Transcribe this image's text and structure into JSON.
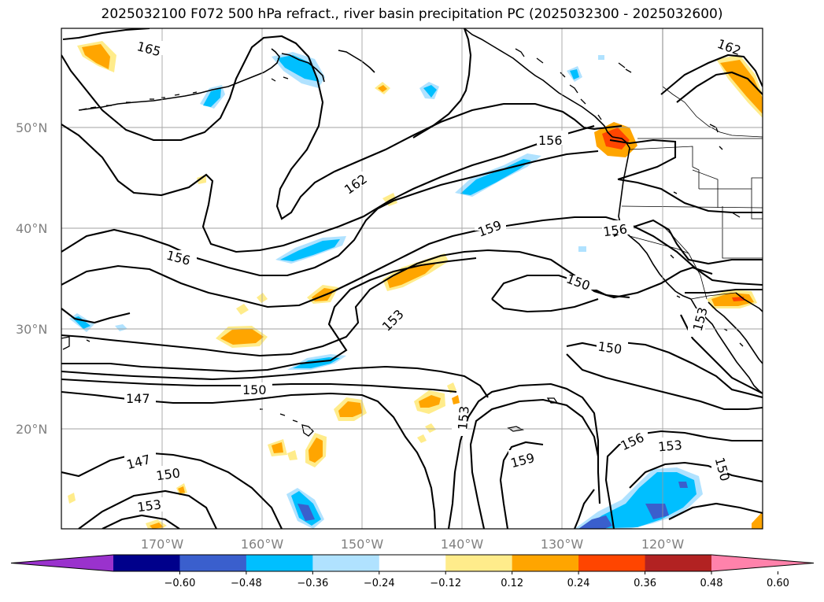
{
  "title": "2025032100 F072 500 hPa refract., river basin precipitation PC (2025032300 - 2025032600)",
  "lat_labels": [
    "50°N",
    "40°N",
    "30°N",
    "20°N"
  ],
  "lon_labels": [
    "170°W",
    "160°W",
    "150°W",
    "140°W",
    "130°W",
    "120°W"
  ],
  "contour_labels": [
    "165",
    "162",
    "162",
    "159",
    "156",
    "156",
    "156",
    "153",
    "153",
    "153",
    "150",
    "150",
    "150",
    "150",
    "147",
    "147",
    "150",
    "153",
    "156",
    "159"
  ],
  "colorbar": {
    "ticks": [
      "−0.60",
      "−0.48",
      "−0.36",
      "−0.24",
      "−0.12",
      "0.12",
      "0.24",
      "0.36",
      "0.48",
      "0.60"
    ],
    "colors": [
      "#9a32cd",
      "#00008b",
      "#3a5fcd",
      "#00bfff",
      "#b0e2ff",
      "#ffffff",
      "#ffec8b",
      "#ffa500",
      "#ff4500",
      "#b22222",
      "#ff82ab"
    ]
  }
}
